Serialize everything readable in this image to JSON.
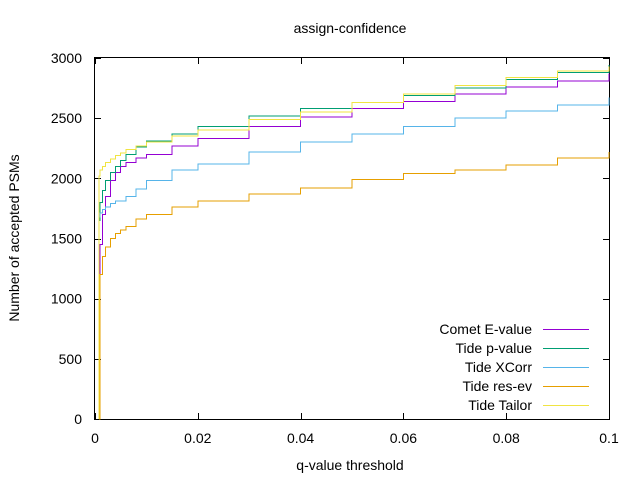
{
  "chart_data": {
    "type": "line",
    "title": "assign-confidence",
    "xlabel": "q-value threshold",
    "ylabel": "Number of accepted PSMs",
    "xlim": [
      0,
      0.1
    ],
    "ylim": [
      0,
      3000
    ],
    "x_ticks": [
      0,
      0.02,
      0.04,
      0.06,
      0.08,
      0.1
    ],
    "x_tick_labels": [
      "0",
      "0.02",
      "0.04",
      "0.06",
      "0.08",
      "0.1"
    ],
    "y_ticks": [
      0,
      500,
      1000,
      1500,
      2000,
      2500,
      3000
    ],
    "y_tick_labels": [
      "0",
      "500",
      "1000",
      "1500",
      "2000",
      "2500",
      "3000"
    ],
    "grid": false,
    "legend_position": "bottom-right",
    "series": [
      {
        "name": "Comet E-value",
        "color": "#9400d3",
        "x": [
          0.0008,
          0.001,
          0.0015,
          0.002,
          0.003,
          0.004,
          0.005,
          0.006,
          0.008,
          0.01,
          0.015,
          0.02,
          0.03,
          0.04,
          0.05,
          0.06,
          0.07,
          0.08,
          0.09,
          0.1
        ],
        "y": [
          1170,
          1450,
          1700,
          1850,
          1980,
          2050,
          2100,
          2130,
          2170,
          2200,
          2270,
          2330,
          2430,
          2510,
          2580,
          2640,
          2700,
          2760,
          2810,
          2870
        ]
      },
      {
        "name": "Tide p-value",
        "color": "#009e73",
        "x": [
          0.0008,
          0.001,
          0.0015,
          0.002,
          0.003,
          0.004,
          0.005,
          0.006,
          0.008,
          0.01,
          0.015,
          0.02,
          0.03,
          0.04,
          0.05,
          0.06,
          0.07,
          0.08,
          0.09,
          0.1
        ],
        "y": [
          1650,
          1800,
          1900,
          1980,
          2050,
          2100,
          2150,
          2200,
          2260,
          2310,
          2370,
          2430,
          2520,
          2580,
          2630,
          2690,
          2750,
          2820,
          2880,
          2940
        ]
      },
      {
        "name": "Tide XCorr",
        "color": "#56b4e9",
        "x": [
          0.0008,
          0.001,
          0.0015,
          0.002,
          0.003,
          0.004,
          0.006,
          0.008,
          0.01,
          0.015,
          0.02,
          0.03,
          0.04,
          0.05,
          0.06,
          0.07,
          0.08,
          0.09,
          0.1
        ],
        "y": [
          1680,
          1710,
          1740,
          1760,
          1790,
          1810,
          1850,
          1910,
          1980,
          2070,
          2120,
          2220,
          2300,
          2370,
          2430,
          2500,
          2560,
          2610,
          2670
        ]
      },
      {
        "name": "Tide res-ev",
        "color": "#e69f00",
        "x": [
          0.0008,
          0.001,
          0.0015,
          0.002,
          0.003,
          0.004,
          0.005,
          0.006,
          0.008,
          0.01,
          0.015,
          0.02,
          0.03,
          0.04,
          0.05,
          0.06,
          0.07,
          0.08,
          0.09,
          0.1
        ],
        "y": [
          0,
          1200,
          1350,
          1430,
          1500,
          1540,
          1570,
          1600,
          1660,
          1700,
          1760,
          1810,
          1870,
          1920,
          1990,
          2040,
          2070,
          2110,
          2170,
          2220
        ]
      },
      {
        "name": "Tide Tailor",
        "color": "#f0e442",
        "x": [
          0.0008,
          0.001,
          0.0015,
          0.002,
          0.003,
          0.004,
          0.005,
          0.006,
          0.008,
          0.01,
          0.015,
          0.02,
          0.03,
          0.04,
          0.05,
          0.06,
          0.07,
          0.08,
          0.09,
          0.1
        ],
        "y": [
          2020,
          2070,
          2100,
          2130,
          2160,
          2190,
          2210,
          2240,
          2270,
          2300,
          2350,
          2400,
          2490,
          2550,
          2630,
          2700,
          2770,
          2840,
          2890,
          2930
        ]
      }
    ]
  }
}
